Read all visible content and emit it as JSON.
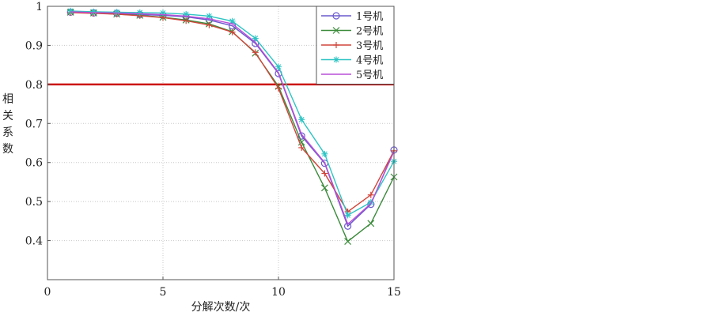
{
  "chart_data": {
    "type": "line",
    "xlabel": "分解次数/次",
    "ylabel": "相关系数",
    "xlim": [
      0,
      15
    ],
    "ylim": [
      0.3,
      1
    ],
    "x_ticks": [
      0,
      5,
      10,
      15
    ],
    "y_ticks": [
      0.4,
      0.5,
      0.6,
      0.7,
      0.8,
      0.9,
      1
    ],
    "y_tick_labels": [
      "0.4",
      "0.5",
      "0.6",
      "0.7",
      "0.8",
      "0.9",
      "1"
    ],
    "grid": true,
    "legend_position": "top-right",
    "threshold": {
      "y": 0.8,
      "color": "#cc1111"
    },
    "x": [
      1,
      2,
      3,
      4,
      5,
      6,
      7,
      8,
      9,
      10,
      11,
      12,
      13,
      14,
      15
    ],
    "series": [
      {
        "name": "1号机",
        "color": "#6a5acd",
        "marker": "circle",
        "values": [
          0.985,
          0.983,
          0.982,
          0.979,
          0.977,
          0.973,
          0.965,
          0.95,
          0.905,
          0.828,
          0.668,
          0.598,
          0.437,
          0.493,
          0.632
        ]
      },
      {
        "name": "2号机",
        "color": "#3a8a3a",
        "marker": "x",
        "values": [
          0.985,
          0.983,
          0.98,
          0.977,
          0.972,
          0.965,
          0.955,
          0.935,
          0.88,
          0.795,
          0.652,
          0.535,
          0.398,
          0.444,
          0.563
        ]
      },
      {
        "name": "3号机",
        "color": "#d0453a",
        "marker": "plus",
        "values": [
          0.984,
          0.982,
          0.98,
          0.976,
          0.971,
          0.963,
          0.952,
          0.934,
          0.882,
          0.79,
          0.638,
          0.572,
          0.474,
          0.517,
          0.63
        ]
      },
      {
        "name": "4号机",
        "color": "#2ec4c4",
        "marker": "star",
        "values": [
          0.988,
          0.986,
          0.985,
          0.984,
          0.983,
          0.98,
          0.975,
          0.962,
          0.918,
          0.845,
          0.71,
          0.622,
          0.465,
          0.498,
          0.603
        ]
      },
      {
        "name": "5号机",
        "color": "#b84fd8",
        "marker": "none",
        "values": [
          0.986,
          0.984,
          0.983,
          0.981,
          0.979,
          0.975,
          0.968,
          0.955,
          0.908,
          0.83,
          0.672,
          0.6,
          0.442,
          0.495,
          0.628
        ]
      }
    ]
  }
}
